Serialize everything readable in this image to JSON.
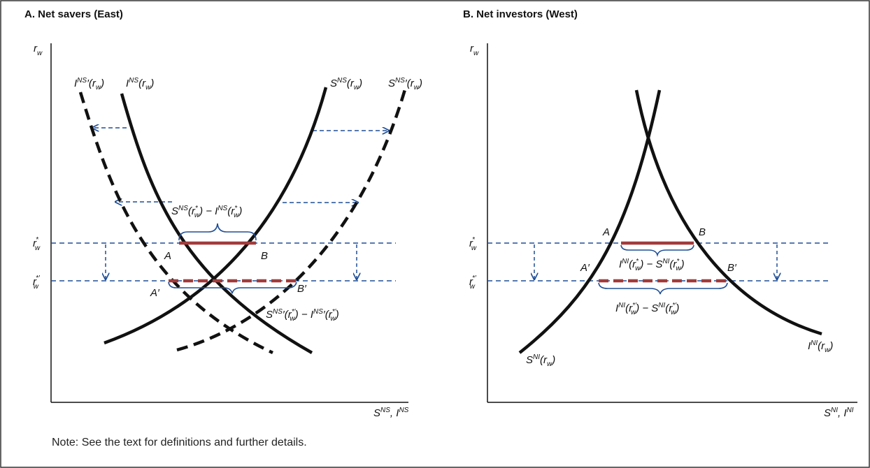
{
  "panelA": {
    "title": "A. Net savers (East)",
    "y_axis_label": "r",
    "y_axis_sub": "w",
    "x_axis_label": "S^NS, I^NS",
    "tick_rstar": "r*_w",
    "tick_rstarprime": "r*′_w",
    "curve_I_shifted": "I^NS′(r_w)",
    "curve_I": "I^NS(r_w)",
    "curve_S": "S^NS(r_w)",
    "curve_S_shifted": "S^NS′(r_w)",
    "gap_label": "S^NS(r*_w) − I^NS(r*_w)",
    "gap_label_prime": "S^NS′(r*′_w) − I^NS′(r*′_w)",
    "points": [
      "A",
      "B",
      "A′",
      "B′"
    ]
  },
  "panelB": {
    "title": "B. Net investors (West)",
    "y_axis_label": "r",
    "y_axis_sub": "w",
    "x_axis_label": "S^NI, I^NI",
    "tick_rstar": "r*_w",
    "tick_rstarprime": "r*′_w",
    "curve_S": "S^NI(r_w)",
    "curve_I": "I^NI(r_w)",
    "gap_label": "I^NI(r*_w) − S^NI(r*_w)",
    "gap_label_prime": "I^NI(r*′_w) − S^NI(r*′_w)",
    "points": [
      "A",
      "B",
      "A′",
      "B′"
    ]
  },
  "note": "Note: See the text for definitions and further details.",
  "colors": {
    "frame": "#333333",
    "curve": "#111111",
    "dashed_guide": "#1f4e96",
    "gap_bar": "#a33a3a",
    "brace": "#1f4e96"
  }
}
